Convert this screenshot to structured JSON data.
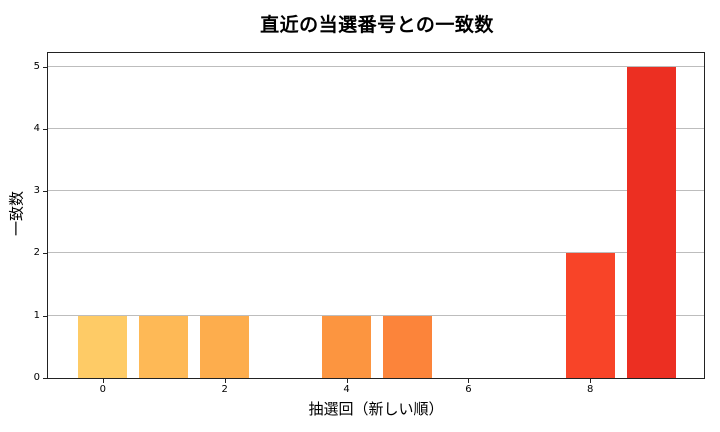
{
  "chart_data": {
    "type": "bar",
    "title": "直近の当選番号との一致数",
    "xlabel": "抽選回（新しい順）",
    "ylabel": "一致数",
    "categories": [
      0,
      1,
      2,
      3,
      4,
      5,
      6,
      7,
      8,
      9
    ],
    "values": [
      1,
      1,
      1,
      0,
      1,
      1,
      0,
      0,
      2,
      5
    ],
    "colors": [
      "#FECB66",
      "#FEB956",
      "#FDAD4D",
      "#FDA047",
      "#FC9540",
      "#FC843A",
      "#FB6D33",
      "#FA582D",
      "#F84428",
      "#EC2F22"
    ],
    "xticks": [
      0,
      2,
      4,
      6,
      8
    ],
    "yticks": [
      0,
      1,
      2,
      3,
      4,
      5
    ],
    "xlim": [
      -0.9,
      9.9
    ],
    "ylim": [
      0,
      5.25
    ],
    "grid": "y",
    "legend": null
  }
}
